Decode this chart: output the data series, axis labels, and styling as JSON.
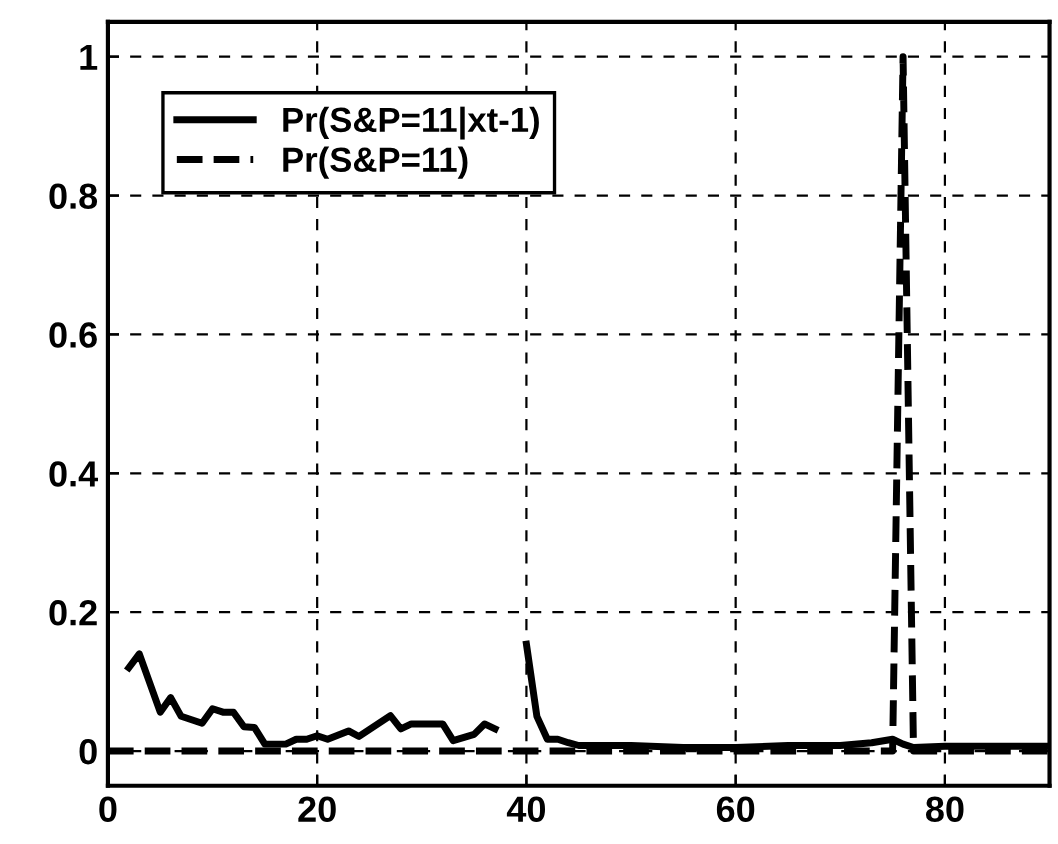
{
  "chart_data": {
    "type": "line",
    "series": [
      {
        "name": "Pr(S&P=11|xt-1)",
        "color": "#000000",
        "line_style": "solid",
        "x": [
          2,
          3,
          5,
          6,
          7,
          9,
          10,
          11,
          12,
          13,
          14,
          15,
          17,
          18,
          19,
          20,
          21,
          23,
          24,
          27,
          28,
          29,
          32,
          33,
          35,
          36,
          37,
          38,
          40,
          41,
          42,
          43,
          44,
          45,
          50,
          55,
          60,
          65,
          70,
          73,
          75,
          76,
          77,
          80,
          85,
          90
        ],
        "values": [
          0.12,
          0.14,
          0.056,
          0.077,
          0.05,
          0.04,
          0.061,
          0.056,
          0.056,
          0.035,
          0.034,
          0.01,
          0.01,
          0.017,
          0.017,
          0.022,
          0.017,
          0.029,
          0.021,
          0.051,
          0.032,
          0.039,
          0.039,
          0.015,
          0.024,
          0.039,
          0.032,
          null,
          0.154,
          0.05,
          0.017,
          0.017,
          0.012,
          0.008,
          0.008,
          0.005,
          0.005,
          0.008,
          0.008,
          0.012,
          0.017,
          0.01,
          0.005,
          0.007,
          0.007,
          0.007
        ]
      },
      {
        "name": "Pr(S&P=11)",
        "color": "#000000",
        "line_style": "dashed",
        "x": [
          0,
          75,
          76,
          77,
          90
        ],
        "values": [
          0,
          0,
          1,
          0,
          0
        ]
      }
    ],
    "xlim": [
      0,
      90
    ],
    "ylim": [
      -0.05,
      1.05
    ],
    "xticks": [
      0,
      20,
      40,
      60,
      80
    ],
    "yticks": [
      0,
      0.2,
      0.4,
      0.6,
      0.8,
      1
    ],
    "grid": true,
    "legend": "top left"
  }
}
